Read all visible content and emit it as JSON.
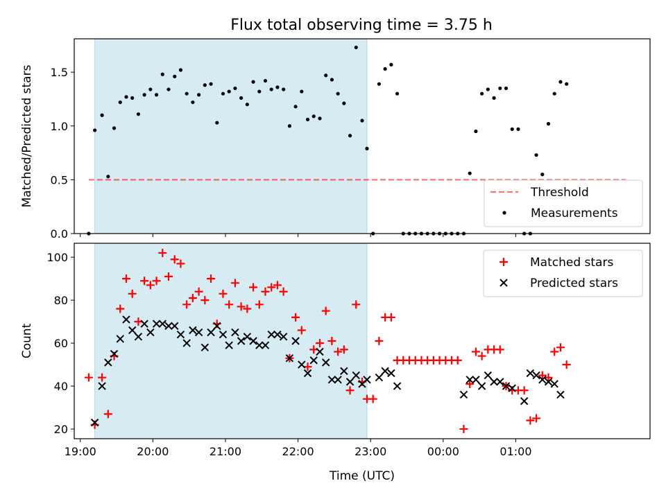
{
  "title": "Flux total observing time = 3.75 h",
  "chart_data": [
    {
      "type": "scatter",
      "ylabel": "Matched/Predicted stars",
      "xlabel": "",
      "xlim": [
        "18:55",
        "26:51"
      ],
      "ylim": [
        0,
        1.81
      ],
      "yticks": [
        "0.0",
        "0.5",
        "1.0",
        "1.5"
      ],
      "grid": false,
      "shaded_interval": [
        "19:12",
        "22:57"
      ],
      "shaded_color": "#add8e6",
      "legend_position": "lower right",
      "threshold": {
        "name": "Threshold",
        "y": 0.5,
        "x": [
          "19:07",
          "26:31"
        ],
        "color": "#ff0000",
        "style": "dashed"
      },
      "series": [
        {
          "name": "Measurements",
          "color": "#000000",
          "marker": "dot",
          "points": [
            [
              "19:07",
              0.0
            ],
            [
              "19:12",
              0.96
            ],
            [
              "19:18",
              1.1
            ],
            [
              "19:23",
              0.53
            ],
            [
              "19:28",
              0.98
            ],
            [
              "19:33",
              1.22
            ],
            [
              "19:38",
              1.27
            ],
            [
              "19:43",
              1.26
            ],
            [
              "19:48",
              1.11
            ],
            [
              "19:53",
              1.29
            ],
            [
              "19:58",
              1.34
            ],
            [
              "20:03",
              1.29
            ],
            [
              "20:08",
              1.48
            ],
            [
              "20:13",
              1.34
            ],
            [
              "20:18",
              1.46
            ],
            [
              "20:23",
              1.52
            ],
            [
              "20:28",
              1.3
            ],
            [
              "20:33",
              1.22
            ],
            [
              "20:38",
              1.29
            ],
            [
              "20:43",
              1.38
            ],
            [
              "20:48",
              1.39
            ],
            [
              "20:53",
              1.03
            ],
            [
              "20:58",
              1.3
            ],
            [
              "21:03",
              1.32
            ],
            [
              "21:08",
              1.35
            ],
            [
              "21:13",
              1.26
            ],
            [
              "21:18",
              1.2
            ],
            [
              "21:23",
              1.41
            ],
            [
              "21:28",
              1.32
            ],
            [
              "21:33",
              1.42
            ],
            [
              "21:38",
              1.34
            ],
            [
              "21:43",
              1.36
            ],
            [
              "21:48",
              1.34
            ],
            [
              "21:53",
              1.0
            ],
            [
              "21:58",
              1.18
            ],
            [
              "22:03",
              1.32
            ],
            [
              "22:08",
              1.06
            ],
            [
              "22:13",
              1.09
            ],
            [
              "22:18",
              1.07
            ],
            [
              "22:23",
              1.47
            ],
            [
              "22:28",
              1.43
            ],
            [
              "22:33",
              1.3
            ],
            [
              "22:38",
              1.21
            ],
            [
              "22:43",
              0.91
            ],
            [
              "22:48",
              1.73
            ],
            [
              "22:53",
              1.05
            ],
            [
              "22:57",
              0.79
            ],
            [
              "23:02",
              0.0
            ],
            [
              "23:07",
              1.39
            ],
            [
              "23:12",
              1.53
            ],
            [
              "23:17",
              1.57
            ],
            [
              "23:22",
              1.3
            ],
            [
              "23:27",
              0.0
            ],
            [
              "23:32",
              0.0
            ],
            [
              "23:37",
              0.0
            ],
            [
              "23:42",
              0.0
            ],
            [
              "23:47",
              0.0
            ],
            [
              "23:52",
              0.0
            ],
            [
              "23:57",
              0.0
            ],
            [
              "24:02",
              0.0
            ],
            [
              "24:07",
              0.0
            ],
            [
              "24:12",
              0.0
            ],
            [
              "24:17",
              0.0
            ],
            [
              "24:22",
              0.56
            ],
            [
              "24:27",
              0.95
            ],
            [
              "24:32",
              1.3
            ],
            [
              "24:37",
              1.34
            ],
            [
              "24:42",
              1.26
            ],
            [
              "24:47",
              1.35
            ],
            [
              "24:52",
              1.35
            ],
            [
              "24:57",
              0.97
            ],
            [
              "25:02",
              0.97
            ],
            [
              "25:07",
              0.0
            ],
            [
              "25:12",
              0.0
            ],
            [
              "25:17",
              0.73
            ],
            [
              "25:22",
              0.55
            ],
            [
              "25:27",
              1.02
            ],
            [
              "25:32",
              1.3
            ],
            [
              "25:37",
              1.41
            ],
            [
              "25:42",
              1.39
            ]
          ]
        }
      ]
    },
    {
      "type": "scatter",
      "ylabel": "Count",
      "xlabel": "Time (UTC)",
      "xlim": [
        "18:55",
        "26:51"
      ],
      "ylim": [
        15.5,
        106.5
      ],
      "yticks": [
        "20",
        "40",
        "60",
        "80",
        "100"
      ],
      "xticks": [
        [
          "19:00",
          "19:00"
        ],
        [
          "20:00",
          "20:00"
        ],
        [
          "21:00",
          "21:00"
        ],
        [
          "22:00",
          "22:00"
        ],
        [
          "23:00",
          "23:00"
        ],
        [
          "24:00",
          "00:00"
        ],
        [
          "25:00",
          "01:00"
        ]
      ],
      "grid": false,
      "shaded_interval": [
        "19:12",
        "22:57"
      ],
      "shaded_color": "#add8e6",
      "legend_position": "upper right",
      "series": [
        {
          "name": "Matched stars",
          "color": "#ff0000",
          "marker": "plus",
          "points": [
            [
              "19:07",
              44
            ],
            [
              "19:12",
              22
            ],
            [
              "19:18",
              44
            ],
            [
              "19:23",
              27
            ],
            [
              "19:28",
              54
            ],
            [
              "19:33",
              76
            ],
            [
              "19:38",
              90
            ],
            [
              "19:43",
              83
            ],
            [
              "19:48",
              70
            ],
            [
              "19:53",
              89
            ],
            [
              "19:58",
              87
            ],
            [
              "20:03",
              89
            ],
            [
              "20:08",
              102
            ],
            [
              "20:13",
              91
            ],
            [
              "20:18",
              99
            ],
            [
              "20:23",
              97
            ],
            [
              "20:28",
              78
            ],
            [
              "20:33",
              81
            ],
            [
              "20:38",
              84
            ],
            [
              "20:43",
              80
            ],
            [
              "20:48",
              90
            ],
            [
              "20:53",
              69
            ],
            [
              "20:58",
              83
            ],
            [
              "21:03",
              78
            ],
            [
              "21:08",
              88
            ],
            [
              "21:13",
              77
            ],
            [
              "21:18",
              76
            ],
            [
              "21:23",
              86
            ],
            [
              "21:28",
              78
            ],
            [
              "21:33",
              84
            ],
            [
              "21:38",
              86
            ],
            [
              "21:43",
              87
            ],
            [
              "21:48",
              84
            ],
            [
              "21:53",
              53
            ],
            [
              "21:58",
              72
            ],
            [
              "22:03",
              66
            ],
            [
              "22:08",
              49
            ],
            [
              "22:13",
              57
            ],
            [
              "22:18",
              60
            ],
            [
              "22:23",
              75
            ],
            [
              "22:28",
              61
            ],
            [
              "22:33",
              56
            ],
            [
              "22:38",
              57
            ],
            [
              "22:43",
              38
            ],
            [
              "22:48",
              78
            ],
            [
              "22:53",
              42
            ],
            [
              "22:57",
              34
            ],
            [
              "23:02",
              34
            ],
            [
              "23:07",
              61
            ],
            [
              "23:12",
              72
            ],
            [
              "23:17",
              72
            ],
            [
              "23:22",
              52
            ],
            [
              "23:27",
              52
            ],
            [
              "23:32",
              52
            ],
            [
              "23:37",
              52
            ],
            [
              "23:42",
              52
            ],
            [
              "23:47",
              52
            ],
            [
              "23:52",
              52
            ],
            [
              "23:57",
              52
            ],
            [
              "24:02",
              52
            ],
            [
              "24:07",
              52
            ],
            [
              "24:12",
              52
            ],
            [
              "24:17",
              20
            ],
            [
              "24:22",
              41
            ],
            [
              "24:27",
              56
            ],
            [
              "24:32",
              54
            ],
            [
              "24:37",
              57
            ],
            [
              "24:42",
              57
            ],
            [
              "24:47",
              57
            ],
            [
              "24:52",
              40
            ],
            [
              "24:57",
              38
            ],
            [
              "25:02",
              38
            ],
            [
              "25:07",
              38
            ],
            [
              "25:12",
              24
            ],
            [
              "25:17",
              25
            ],
            [
              "25:22",
              45
            ],
            [
              "25:27",
              44
            ],
            [
              "25:32",
              56
            ],
            [
              "25:37",
              58
            ],
            [
              "25:42",
              50
            ]
          ]
        },
        {
          "name": "Predicted stars",
          "color": "#000000",
          "marker": "x",
          "points": [
            [
              "19:12",
              23
            ],
            [
              "19:18",
              40
            ],
            [
              "19:23",
              51
            ],
            [
              "19:28",
              55
            ],
            [
              "19:33",
              62
            ],
            [
              "19:38",
              71
            ],
            [
              "19:43",
              66
            ],
            [
              "19:48",
              63
            ],
            [
              "19:53",
              69
            ],
            [
              "19:58",
              65
            ],
            [
              "20:03",
              69
            ],
            [
              "20:08",
              69
            ],
            [
              "20:13",
              68
            ],
            [
              "20:18",
              68
            ],
            [
              "20:23",
              64
            ],
            [
              "20:28",
              60
            ],
            [
              "20:33",
              66
            ],
            [
              "20:38",
              65
            ],
            [
              "20:43",
              58
            ],
            [
              "20:48",
              65
            ],
            [
              "20:53",
              68
            ],
            [
              "20:58",
              64
            ],
            [
              "21:03",
              59
            ],
            [
              "21:08",
              65
            ],
            [
              "21:13",
              61
            ],
            [
              "21:18",
              63
            ],
            [
              "21:23",
              61
            ],
            [
              "21:28",
              59
            ],
            [
              "21:33",
              59
            ],
            [
              "21:38",
              64
            ],
            [
              "21:43",
              64
            ],
            [
              "21:48",
              63
            ],
            [
              "21:53",
              53
            ],
            [
              "21:58",
              61
            ],
            [
              "22:03",
              50
            ],
            [
              "22:08",
              46
            ],
            [
              "22:13",
              52
            ],
            [
              "22:18",
              56
            ],
            [
              "22:23",
              51
            ],
            [
              "22:28",
              43
            ],
            [
              "22:33",
              43
            ],
            [
              "22:38",
              47
            ],
            [
              "22:43",
              42
            ],
            [
              "22:48",
              45
            ],
            [
              "22:53",
              41
            ],
            [
              "22:57",
              43
            ],
            [
              "23:07",
              44
            ],
            [
              "23:12",
              47
            ],
            [
              "23:17",
              46
            ],
            [
              "23:22",
              40
            ],
            [
              "24:17",
              36
            ],
            [
              "24:22",
              43
            ],
            [
              "24:27",
              43
            ],
            [
              "24:32",
              40
            ],
            [
              "24:37",
              45
            ],
            [
              "24:42",
              42
            ],
            [
              "24:47",
              42
            ],
            [
              "24:52",
              40
            ],
            [
              "24:57",
              39
            ],
            [
              "25:07",
              33
            ],
            [
              "25:12",
              46
            ],
            [
              "25:17",
              45
            ],
            [
              "25:22",
              43
            ],
            [
              "25:27",
              42
            ],
            [
              "25:32",
              41
            ],
            [
              "25:37",
              36
            ]
          ]
        }
      ]
    }
  ]
}
